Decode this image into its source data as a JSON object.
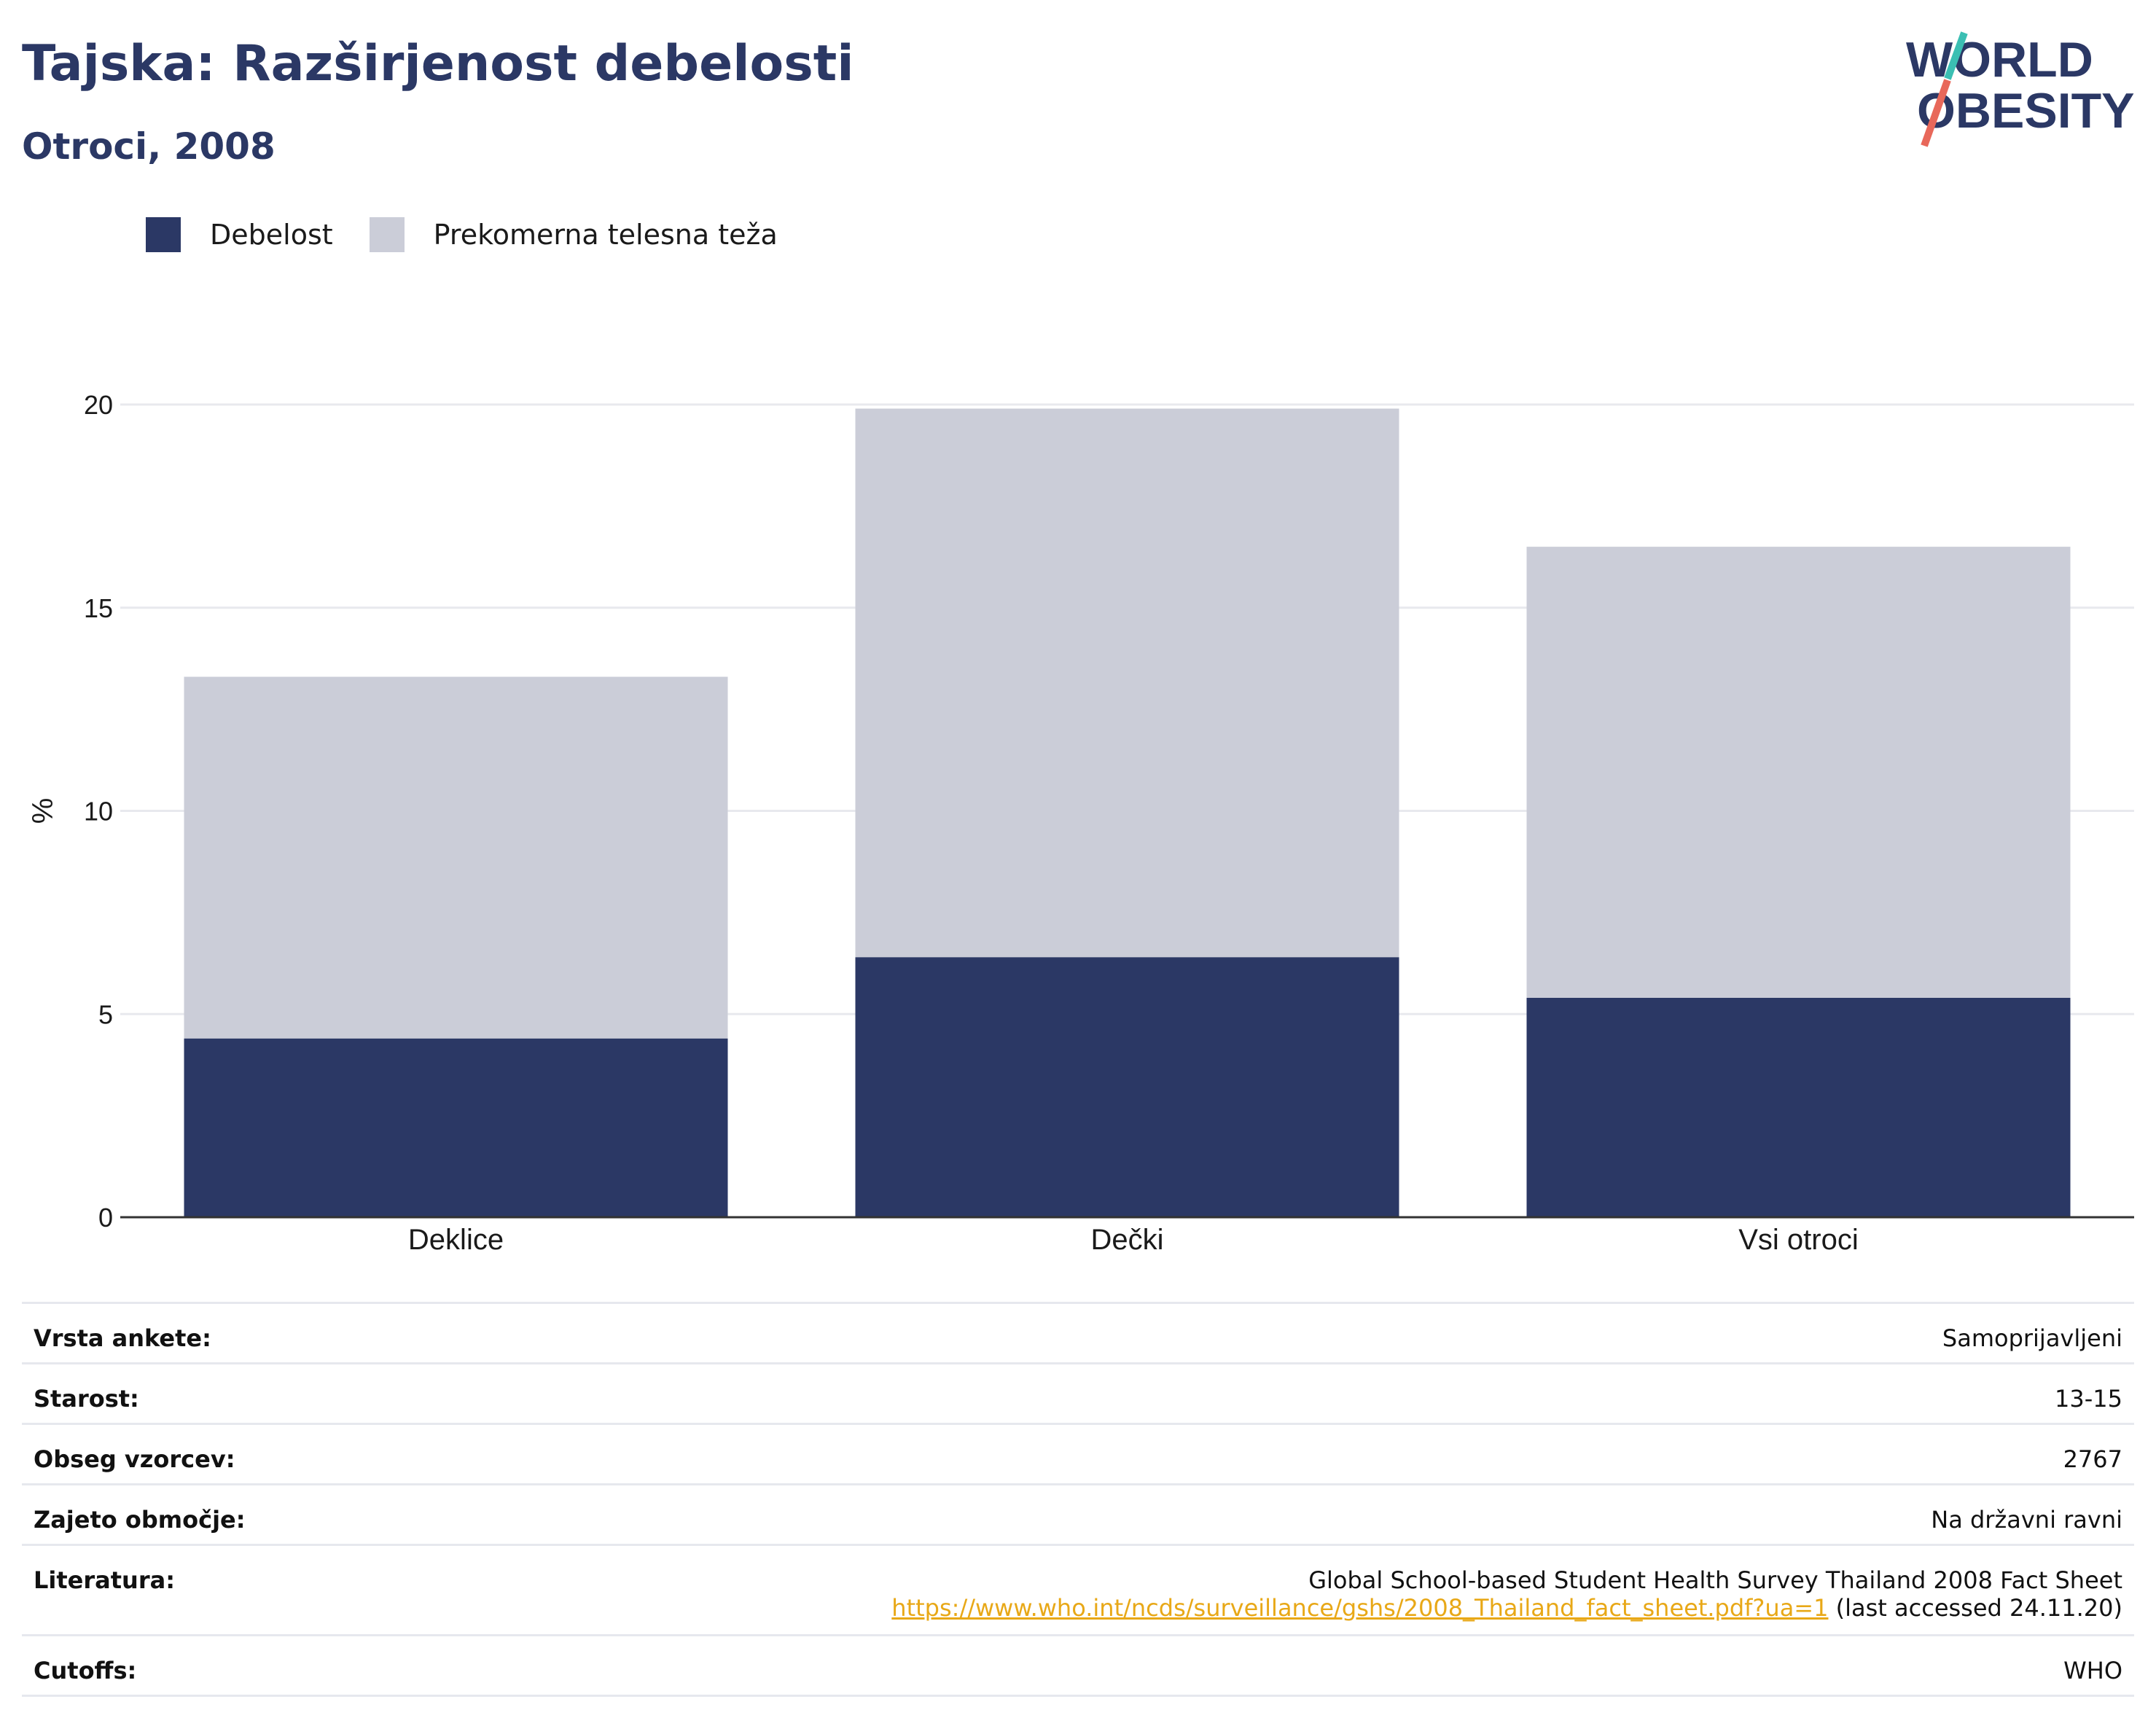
{
  "header": {
    "title": "Tajska: Razširjenost debelosti",
    "subtitle": "Otroci, 2008"
  },
  "logo": {
    "line1": "WORLD",
    "line2": "OBESITY",
    "color_text": "#2b3865",
    "color_slash_top": "#3bbfb3",
    "color_slash_bottom": "#e8685a"
  },
  "legend": [
    {
      "label": "Debelost",
      "color": "#2b3865"
    },
    {
      "label": "Prekomerna telesna teža",
      "color": "#cbcdd8"
    }
  ],
  "chart_data": {
    "type": "bar",
    "stacked": true,
    "categories": [
      "Deklice",
      "Dečki",
      "Vsi otroci"
    ],
    "series": [
      {
        "name": "Debelost",
        "values": [
          4.4,
          6.4,
          5.4
        ],
        "color": "#2b3865"
      },
      {
        "name": "Prekomerna telesna teža",
        "values": [
          8.9,
          13.5,
          11.1
        ],
        "color": "#cbcdd8"
      }
    ],
    "ylabel": "%",
    "ylim": [
      0,
      20
    ],
    "yticks": [
      0,
      5,
      10,
      15,
      20
    ],
    "grid": true,
    "legend_position": "top-left"
  },
  "info": {
    "rows": [
      {
        "key": "Vrsta ankete:",
        "value": "Samoprijavljeni"
      },
      {
        "key": "Starost:",
        "value": "13-15"
      },
      {
        "key": "Obseg vzorcev:",
        "value": "2767"
      },
      {
        "key": "Zajeto območje:",
        "value": "Na državni ravni"
      }
    ],
    "literature": {
      "key": "Literatura:",
      "line1": "Global School-based Student Health Survey Thailand 2008 Fact Sheet",
      "link": "https://www.who.int/ncds/surveillance/gshs/2008_Thailand_fact_sheet.pdf?ua=1",
      "accessed": " (last accessed 24.11.20)"
    },
    "cutoffs": {
      "key": "Cutoffs:",
      "value": "WHO"
    }
  }
}
